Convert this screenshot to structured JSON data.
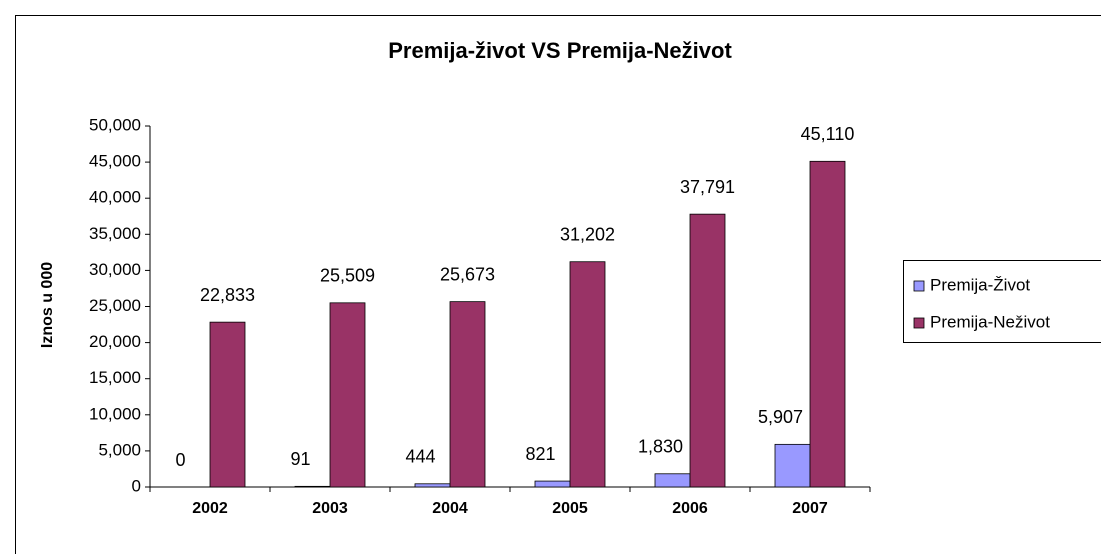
{
  "chart_data": {
    "type": "bar",
    "title": "Premija-život VS Premija-Neživot",
    "y_label": "Iznos u 000",
    "categories": [
      "2002",
      "2003",
      "2004",
      "2005",
      "2006",
      "2007"
    ],
    "series": [
      {
        "name": "Premija-Život",
        "color": "#9999ff",
        "values": [
          0,
          91,
          444,
          821,
          1830,
          5907
        ],
        "value_labels": [
          "0",
          "91",
          "444",
          "821",
          "1,830",
          "5,907"
        ]
      },
      {
        "name": "Premija-Neživot",
        "color": "#993366",
        "values": [
          22833,
          25509,
          25673,
          31202,
          37791,
          45110
        ],
        "value_labels": [
          "22,833",
          "25,509",
          "25,673",
          "31,202",
          "37,791",
          "45,110"
        ]
      }
    ],
    "ylim": [
      0,
      50000
    ],
    "yticks": [
      0,
      {
        "value": 5000,
        "label": "5,000"
      },
      {
        "value": 10000,
        "label": "10,000"
      },
      {
        "value": 15000,
        "label": "15,000"
      },
      {
        "value": 20000,
        "label": "20,000"
      },
      {
        "value": 25000,
        "label": "25,000"
      },
      {
        "value": 30000,
        "label": "30,000"
      },
      {
        "value": 35000,
        "label": "35,000"
      },
      {
        "value": 40000,
        "label": "40,000"
      },
      {
        "value": 45000,
        "label": "45,000"
      },
      {
        "value": 50000,
        "label": "50,000"
      }
    ],
    "legend": "right"
  }
}
